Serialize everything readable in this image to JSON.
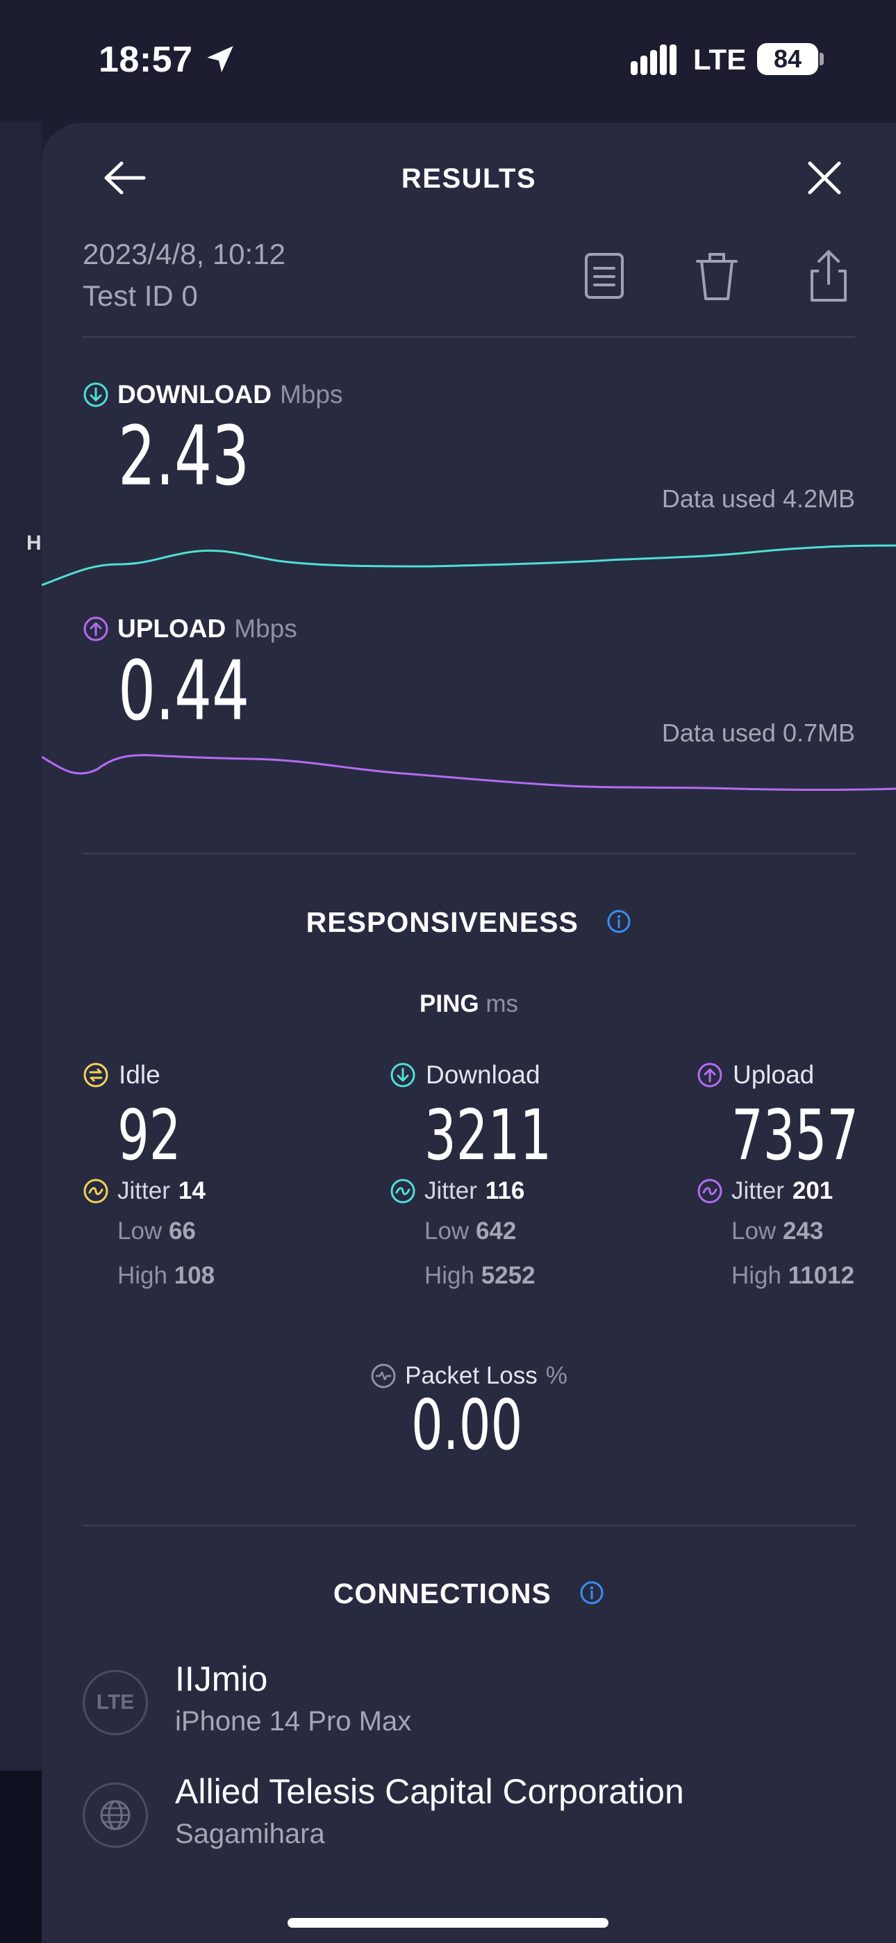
{
  "status_bar": {
    "time": "18:57",
    "network": "LTE",
    "battery": "84"
  },
  "header": {
    "title": "RESULTS"
  },
  "test": {
    "date": "2023/4/8, 10:12",
    "id": "Test ID 0"
  },
  "background": {
    "partial_text": "H"
  },
  "download": {
    "label": "DOWNLOAD",
    "unit": "Mbps",
    "value": "2.43",
    "data_used": "Data used 4.2MB",
    "color": "#4fe0d6"
  },
  "upload": {
    "label": "UPLOAD",
    "unit": "Mbps",
    "value": "0.44",
    "data_used": "Data used 0.7MB",
    "color": "#b36cf2"
  },
  "responsiveness": {
    "title": "RESPONSIVENESS",
    "ping_label": "PING",
    "ping_unit": "ms",
    "columns": [
      {
        "label": "Idle",
        "value": "92",
        "jitter_label": "Jitter",
        "jitter": "14",
        "low_label": "Low",
        "low": "66",
        "high_label": "High",
        "high": "108",
        "color": "#f2d35a"
      },
      {
        "label": "Download",
        "value": "3211",
        "jitter_label": "Jitter",
        "jitter": "116",
        "low_label": "Low",
        "low": "642",
        "high_label": "High",
        "high": "5252",
        "color": "#4fe0d6"
      },
      {
        "label": "Upload",
        "value": "7357",
        "jitter_label": "Jitter",
        "jitter": "201",
        "low_label": "Low",
        "low": "243",
        "high_label": "High",
        "high": "11012",
        "color": "#b36cf2"
      }
    ],
    "packet_loss": {
      "label": "Packet Loss",
      "unit": "%",
      "value": "0.00"
    }
  },
  "connections": {
    "title": "CONNECTIONS",
    "items": [
      {
        "icon_text": "LTE",
        "name": "IIJmio",
        "detail": "iPhone 14 Pro Max"
      },
      {
        "icon": "globe-icon",
        "name": "Allied Telesis Capital Corporation",
        "detail": "Sagamihara"
      }
    ]
  },
  "accent": {
    "info": "#3a8ef0"
  }
}
